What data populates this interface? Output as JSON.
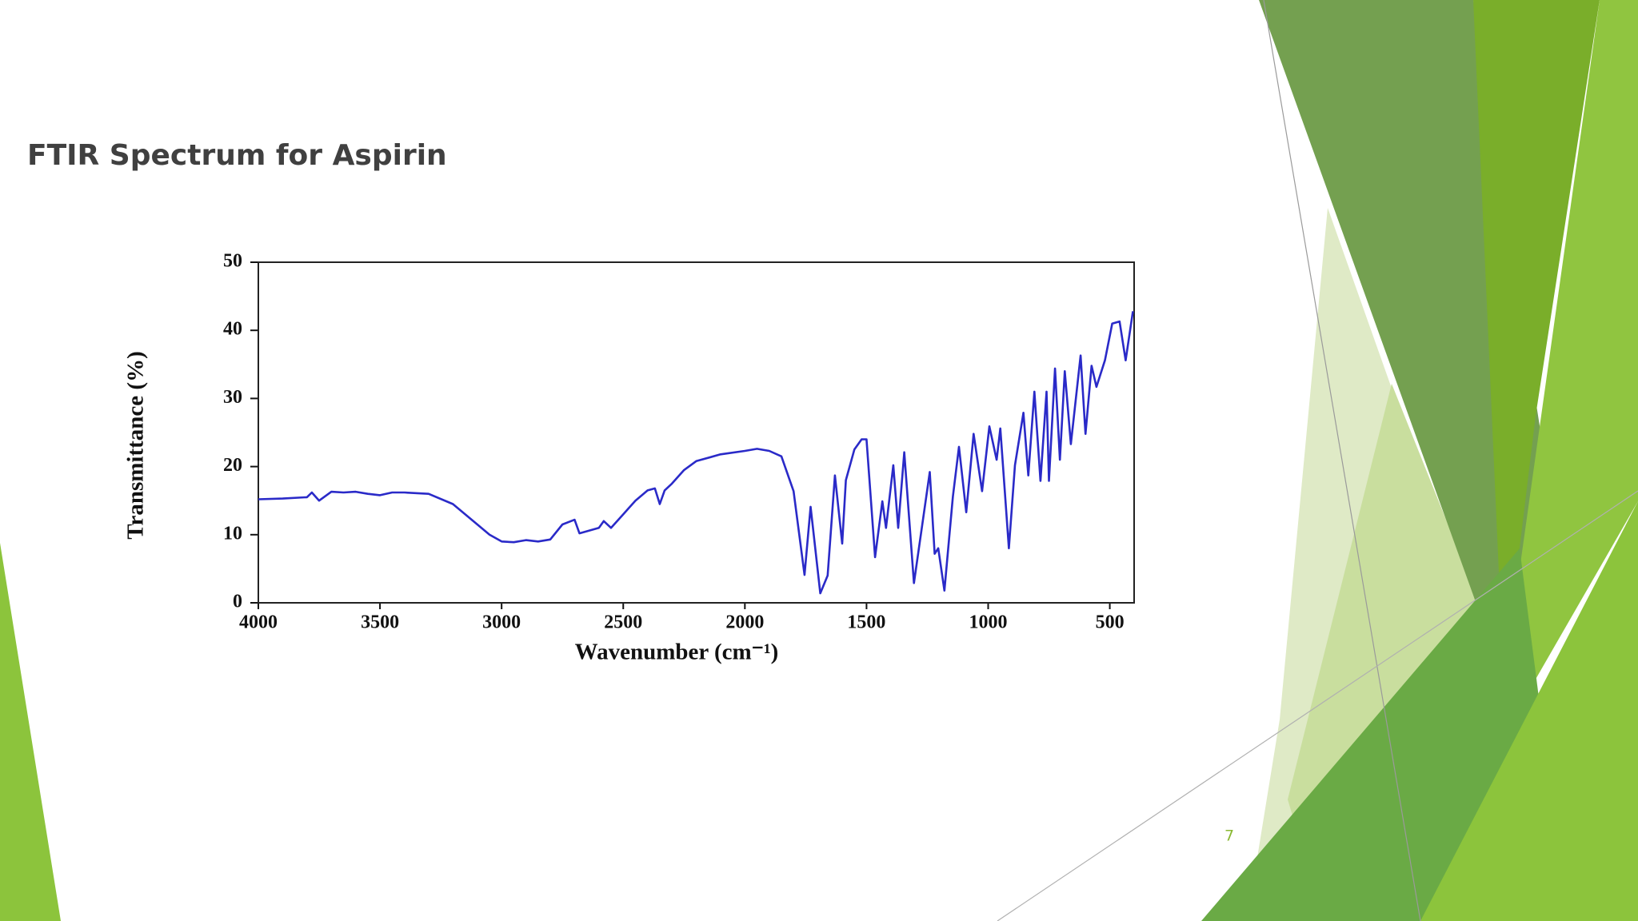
{
  "chart_data": {
    "type": "line",
    "title": "FTIR Spectrum for Aspirin",
    "x_label": "Wavenumber (cm⁻¹)",
    "y_label": "Transmittance (%)",
    "color": "#2a2ac8",
    "x": [
      4000,
      3900,
      3800,
      3780,
      3750,
      3700,
      3650,
      3600,
      3550,
      3500,
      3450,
      3400,
      3300,
      3200,
      3100,
      3050,
      3000,
      2950,
      2900,
      2850,
      2800,
      2750,
      2700,
      2680,
      2600,
      2580,
      2550,
      2500,
      2450,
      2400,
      2370,
      2350,
      2330,
      2300,
      2250,
      2200,
      2100,
      2000,
      1950,
      1900,
      1850,
      1800,
      1755,
      1730,
      1690,
      1660,
      1630,
      1600,
      1585,
      1550,
      1520,
      1500,
      1465,
      1435,
      1420,
      1390,
      1370,
      1345,
      1305,
      1240,
      1220,
      1205,
      1180,
      1145,
      1120,
      1090,
      1060,
      1025,
      995,
      965,
      950,
      915,
      890,
      855,
      835,
      810,
      785,
      760,
      750,
      725,
      705,
      685,
      660,
      620,
      600,
      575,
      555,
      520,
      490,
      460,
      435,
      405
    ],
    "values": [
      15.2,
      15.3,
      15.5,
      16.2,
      15.0,
      16.3,
      16.2,
      16.3,
      16.0,
      15.8,
      16.2,
      16.2,
      16.0,
      14.5,
      11.5,
      10.0,
      9.0,
      8.9,
      9.2,
      9.0,
      9.3,
      11.5,
      12.2,
      10.2,
      11.0,
      12.0,
      11.0,
      13.0,
      15.0,
      16.5,
      16.8,
      14.5,
      16.5,
      17.5,
      19.5,
      20.8,
      21.8,
      22.3,
      22.6,
      22.3,
      21.5,
      16.4,
      4.1,
      14.1,
      1.4,
      4.0,
      18.7,
      8.7,
      18.0,
      22.5,
      24.0,
      24.0,
      6.7,
      14.9,
      11.0,
      20.2,
      11.0,
      22.1,
      2.9,
      19.2,
      7.2,
      8.0,
      1.8,
      15.6,
      22.9,
      13.3,
      24.8,
      16.4,
      25.9,
      21.0,
      25.6,
      8.0,
      20.2,
      27.9,
      18.7,
      31.0,
      17.9,
      31.0,
      17.9,
      34.4,
      21.0,
      34.0,
      23.3,
      36.3,
      24.8,
      34.8,
      31.7,
      35.6,
      41.0,
      41.3,
      35.6,
      42.8
    ],
    "xlim": [
      4000,
      400
    ],
    "xticks": [
      4000,
      3500,
      3000,
      2500,
      2000,
      1500,
      1000,
      500
    ],
    "ylim": [
      0,
      50
    ],
    "yticks": [
      0,
      10,
      20,
      30,
      40,
      50
    ]
  },
  "page_number": 7
}
